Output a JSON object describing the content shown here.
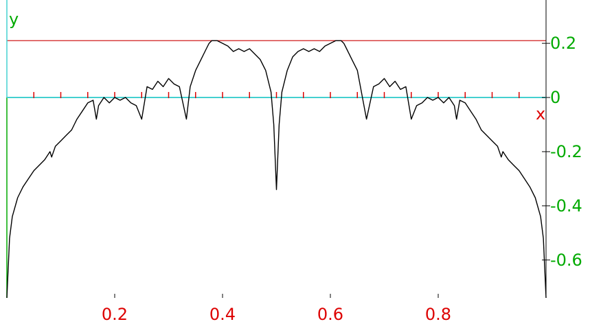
{
  "chart_data": {
    "type": "line",
    "title": "",
    "xlabel": "x",
    "ylabel": "y",
    "xlim": [
      0,
      1
    ],
    "ylim": [
      -0.74,
      0.36
    ],
    "x_axis_color": "#dd0000",
    "y_axis_color": "#00aa00",
    "axis_line_color": "#44d0d0",
    "reference_line": {
      "y": 0.21,
      "color": "#cc0000"
    },
    "x_ticks": [
      {
        "value": 0.2,
        "label": "0.2"
      },
      {
        "value": 0.4,
        "label": "0.4"
      },
      {
        "value": 0.6,
        "label": "0.6"
      },
      {
        "value": 0.8,
        "label": "0.8"
      }
    ],
    "x_minor_ticks": [
      0.05,
      0.1,
      0.15,
      0.2,
      0.25,
      0.3,
      0.35,
      0.4,
      0.45,
      0.5,
      0.55,
      0.6,
      0.65,
      0.7,
      0.75,
      0.8,
      0.85,
      0.9,
      0.95
    ],
    "y_ticks": [
      {
        "value": 0.2,
        "label": "0.2"
      },
      {
        "value": 0,
        "label": "0"
      },
      {
        "value": -0.2,
        "label": "-0.2"
      },
      {
        "value": -0.4,
        "label": "-0.4"
      },
      {
        "value": -0.6,
        "label": "-0.6"
      }
    ],
    "series": [
      {
        "color": "#000000",
        "x": [
          0,
          0.005,
          0.01,
          0.02,
          0.03,
          0.04,
          0.05,
          0.06,
          0.07,
          0.08,
          0.083,
          0.09,
          0.1,
          0.11,
          0.12,
          0.125,
          0.13,
          0.14,
          0.15,
          0.16,
          0.166,
          0.17,
          0.18,
          0.19,
          0.2,
          0.21,
          0.22,
          0.23,
          0.24,
          0.25,
          0.26,
          0.27,
          0.28,
          0.29,
          0.3,
          0.31,
          0.32,
          0.333,
          0.34,
          0.35,
          0.36,
          0.37,
          0.375,
          0.38,
          0.39,
          0.4,
          0.41,
          0.42,
          0.43,
          0.44,
          0.45,
          0.46,
          0.47,
          0.48,
          0.49,
          0.495,
          0.5,
          0.505,
          0.51,
          0.52,
          0.53,
          0.54,
          0.55,
          0.56,
          0.57,
          0.58,
          0.59,
          0.6,
          0.61,
          0.62,
          0.625,
          0.63,
          0.64,
          0.65,
          0.667,
          0.68,
          0.69,
          0.7,
          0.71,
          0.72,
          0.73,
          0.74,
          0.75,
          0.76,
          0.77,
          0.78,
          0.79,
          0.8,
          0.81,
          0.82,
          0.83,
          0.834,
          0.84,
          0.85,
          0.86,
          0.87,
          0.875,
          0.88,
          0.89,
          0.9,
          0.91,
          0.917,
          0.92,
          0.93,
          0.94,
          0.95,
          0.96,
          0.97,
          0.98,
          0.99,
          0.995,
          1.0
        ],
        "y": [
          -0.74,
          -0.52,
          -0.44,
          -0.37,
          -0.33,
          -0.3,
          -0.27,
          -0.25,
          -0.23,
          -0.2,
          -0.22,
          -0.18,
          -0.16,
          -0.14,
          -0.12,
          -0.1,
          -0.08,
          -0.05,
          -0.02,
          -0.01,
          -0.08,
          -0.03,
          0.0,
          -0.02,
          0.0,
          -0.01,
          0.0,
          -0.02,
          -0.03,
          -0.08,
          0.04,
          0.03,
          0.06,
          0.04,
          0.07,
          0.05,
          0.04,
          -0.08,
          0.04,
          0.1,
          0.14,
          0.18,
          0.2,
          0.21,
          0.21,
          0.2,
          0.19,
          0.17,
          0.18,
          0.17,
          0.18,
          0.16,
          0.14,
          0.1,
          0.02,
          -0.1,
          -0.34,
          -0.1,
          0.02,
          0.1,
          0.15,
          0.17,
          0.18,
          0.17,
          0.18,
          0.17,
          0.19,
          0.2,
          0.21,
          0.21,
          0.2,
          0.18,
          0.14,
          0.1,
          -0.08,
          0.04,
          0.05,
          0.07,
          0.04,
          0.06,
          0.03,
          0.04,
          -0.08,
          -0.03,
          -0.02,
          0.0,
          -0.01,
          0.0,
          -0.02,
          0.0,
          -0.03,
          -0.08,
          -0.01,
          -0.02,
          -0.05,
          -0.08,
          -0.1,
          -0.12,
          -0.14,
          -0.16,
          -0.18,
          -0.22,
          -0.2,
          -0.23,
          -0.25,
          -0.27,
          -0.3,
          -0.33,
          -0.37,
          -0.44,
          -0.52,
          -0.74
        ]
      }
    ]
  }
}
